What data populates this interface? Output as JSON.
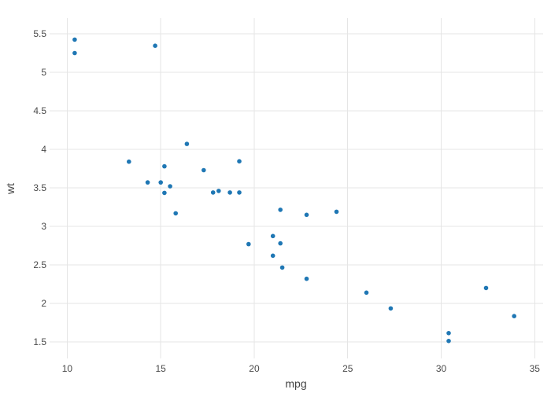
{
  "chart_data": {
    "type": "scatter",
    "title": "",
    "xlabel": "mpg",
    "ylabel": "wt",
    "x": [
      21.0,
      21.0,
      22.8,
      21.4,
      18.7,
      18.1,
      14.3,
      24.4,
      22.8,
      19.2,
      17.8,
      16.4,
      17.3,
      15.2,
      10.4,
      10.4,
      14.7,
      32.4,
      30.4,
      33.9,
      21.5,
      15.5,
      15.2,
      13.3,
      19.2,
      27.3,
      26.0,
      30.4,
      15.8,
      19.7,
      15.0,
      21.4
    ],
    "y": [
      2.62,
      2.875,
      2.32,
      3.215,
      3.44,
      3.46,
      3.57,
      3.19,
      3.15,
      3.44,
      3.44,
      4.07,
      3.73,
      3.78,
      5.25,
      5.424,
      5.345,
      2.2,
      1.615,
      1.835,
      2.465,
      3.52,
      3.435,
      3.84,
      3.845,
      1.935,
      2.14,
      1.513,
      3.17,
      2.77,
      3.57,
      2.78
    ],
    "x_ticks": [
      10,
      15,
      20,
      25,
      30,
      35
    ],
    "y_ticks": [
      1.5,
      2,
      2.5,
      3,
      3.5,
      4,
      4.5,
      5,
      5.5
    ],
    "xlim": [
      9.057,
      35.45
    ],
    "ylim": [
      1.286,
      5.704
    ],
    "grid": "on",
    "legend": "none",
    "marker_color": "#1f77b4",
    "marker_radius": 2.8,
    "grid_color": "#e5e5e5",
    "tick_text_color": "#4a4a4a",
    "axis_title_color": "#444444",
    "background_color": "#ffffff"
  }
}
